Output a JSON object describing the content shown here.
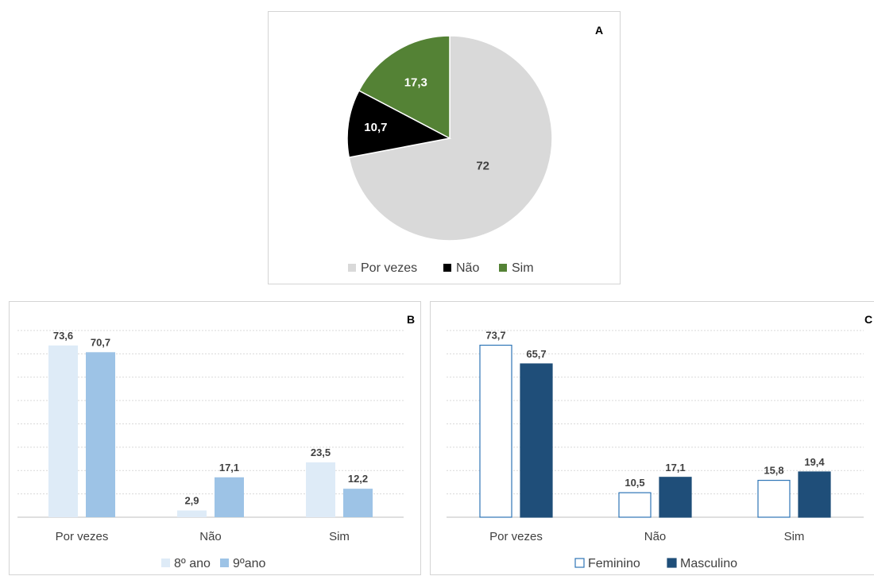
{
  "chart_data": [
    {
      "panel": "A",
      "type": "pie",
      "labels": [
        "Por vezes",
        "Não",
        "Sim"
      ],
      "values": [
        72,
        10.7,
        17.3
      ],
      "value_labels": [
        "72",
        "10,7",
        "17,3"
      ],
      "colors": [
        "#d9d9d9",
        "#000000",
        "#548235"
      ],
      "label_colors": [
        "#404040",
        "#ffffff",
        "#ffffff"
      ],
      "legend": [
        "Por vezes",
        "Não",
        "Sim"
      ],
      "legend_position": "bottom"
    },
    {
      "panel": "B",
      "type": "bar",
      "categories": [
        "Por vezes",
        "Não",
        "Sim"
      ],
      "series": [
        {
          "name": "8º ano",
          "values": [
            73.6,
            2.9,
            23.5
          ],
          "value_labels": [
            "73,6",
            "2,9",
            "23,5"
          ],
          "color": "#deebf7"
        },
        {
          "name": "9ºano",
          "values": [
            70.7,
            17.1,
            12.2
          ],
          "value_labels": [
            "70,7",
            "17,1",
            "12,2"
          ],
          "color": "#9dc3e6"
        }
      ],
      "ylim": [
        0,
        80
      ],
      "grid": true,
      "legend_position": "bottom"
    },
    {
      "panel": "C",
      "type": "bar",
      "categories": [
        "Por vezes",
        "Não",
        "Sim"
      ],
      "series": [
        {
          "name": "Feminino",
          "values": [
            73.7,
            10.5,
            15.8
          ],
          "value_labels": [
            "73,7",
            "10,5",
            "15,8"
          ],
          "color": "#ffffff",
          "stroke": "#2e75b6"
        },
        {
          "name": "Masculino",
          "values": [
            65.7,
            17.1,
            19.4
          ],
          "value_labels": [
            "65,7",
            "17,1",
            "19,4"
          ],
          "color": "#1f4e79",
          "stroke": "#1f4e79"
        }
      ],
      "ylim": [
        0,
        80
      ],
      "grid": true,
      "legend_position": "bottom"
    }
  ]
}
